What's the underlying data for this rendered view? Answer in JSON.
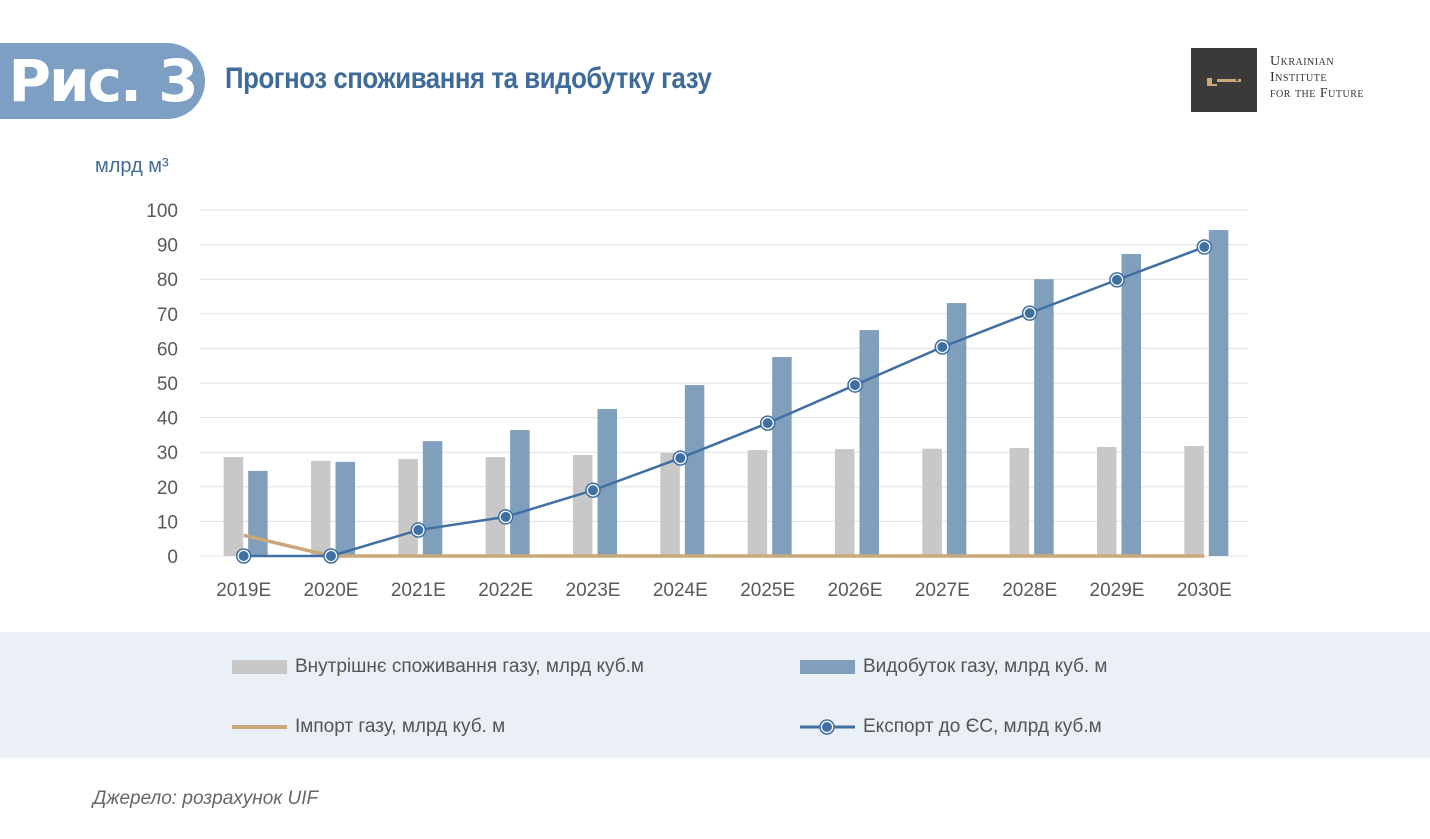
{
  "header": {
    "figure_label": "Рис. 3",
    "title": "Прогноз споживання та видобутку газу"
  },
  "logo": {
    "lines": [
      "Ukrainian",
      "Institute",
      "for the Future"
    ]
  },
  "source": {
    "label": "Джерело:",
    "text": " розрахунок UIF"
  },
  "chart_data": {
    "type": "bar",
    "title": "Прогноз споживання та видобутку газу",
    "ylabel": "млрд м³",
    "ylim": [
      0,
      100
    ],
    "yticks": [
      0,
      10,
      20,
      30,
      40,
      50,
      60,
      70,
      80,
      90,
      100
    ],
    "grid": true,
    "legend_position": "bottom",
    "categories": [
      "2019E",
      "2020E",
      "2021E",
      "2022E",
      "2023E",
      "2024E",
      "2025E",
      "2026E",
      "2027E",
      "2028E",
      "2029E",
      "2030E"
    ],
    "series": [
      {
        "name": "Внутрішнє споживання газу, млрд куб.м",
        "kind": "bar",
        "color": "#c8c8c8",
        "values": [
          28.6,
          27.5,
          28,
          28.6,
          29.2,
          29.8,
          30.6,
          30.9,
          31,
          31.2,
          31.5,
          31.8
        ]
      },
      {
        "name": "Видобуток газу, млрд куб. м",
        "kind": "bar",
        "color": "#7f9fbd",
        "values": [
          24.6,
          27.2,
          33.2,
          36.4,
          42.5,
          49.4,
          57.5,
          65.3,
          73.1,
          80,
          87.3,
          94.2
        ]
      },
      {
        "name": "Імпорт газу, млрд куб. м",
        "kind": "line",
        "color": "#c9a97a",
        "values": [
          6,
          0,
          0,
          0,
          0,
          0,
          0,
          0,
          0,
          0,
          0,
          0
        ]
      },
      {
        "name": "Експорт до ЄС, млрд куб.м",
        "kind": "line-marker",
        "color": "#3f6fa3",
        "values": [
          0,
          0,
          7.5,
          11.3,
          19,
          28.3,
          38.4,
          49.4,
          60.4,
          70.2,
          79.8,
          89.3
        ]
      }
    ]
  }
}
